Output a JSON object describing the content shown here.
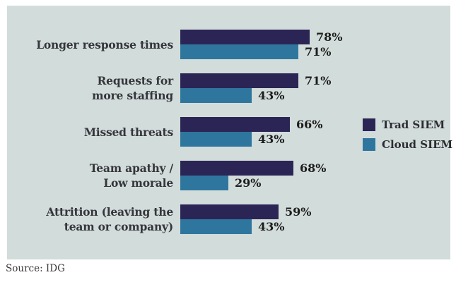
{
  "chart_data": {
    "type": "bar",
    "orientation": "horizontal",
    "title": "",
    "xlabel": "",
    "ylabel": "",
    "xlim": [
      0,
      100
    ],
    "value_suffix": "%",
    "grid": false,
    "legend_position": "right",
    "panel_background": "#d2dcda",
    "categories": [
      "Longer response times",
      "Requests for more staffing",
      "Missed threats",
      "Team apathy / Low morale",
      "Attrition (leaving the team or company)"
    ],
    "categories_wrapped": [
      [
        "Longer response times"
      ],
      [
        "Requests for",
        "more staffing"
      ],
      [
        "Missed threats"
      ],
      [
        "Team apathy /",
        "Low morale"
      ],
      [
        "Attrition (leaving the",
        "team or company)"
      ]
    ],
    "series": [
      {
        "name": "Trad SIEM",
        "color": "#2b2556",
        "values": [
          78,
          71,
          66,
          68,
          59
        ]
      },
      {
        "name": "Cloud SIEM",
        "color": "#2f769e",
        "values": [
          71,
          43,
          43,
          29,
          43
        ]
      }
    ]
  },
  "legend": {
    "items": [
      {
        "label": "Trad SIEM",
        "color": "#2b2556"
      },
      {
        "label": "Cloud SIEM",
        "color": "#2f769e"
      }
    ]
  },
  "source": {
    "label": "Source: IDG"
  }
}
